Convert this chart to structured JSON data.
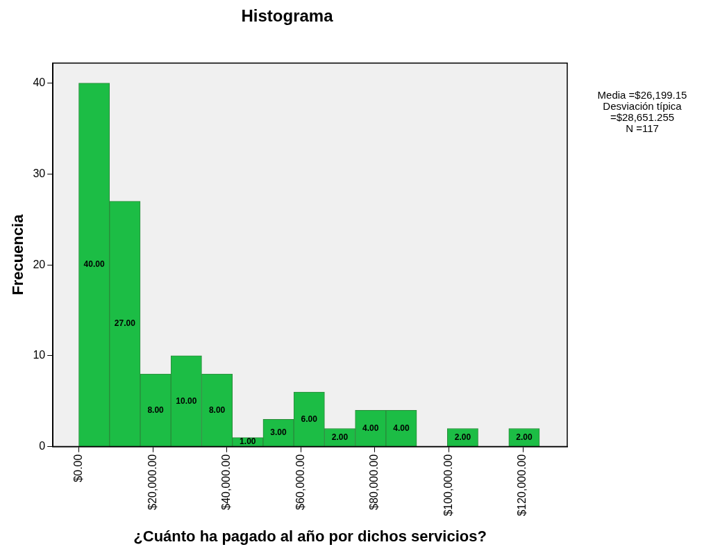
{
  "chart_data": {
    "type": "histogram",
    "title": "Histograma",
    "xlabel": "¿Cuánto ha pagado al año por dichos servicios?",
    "ylabel": "Frecuencia",
    "bins": [
      0,
      8300,
      16600,
      24900,
      33200,
      41500,
      49800,
      58100,
      66400,
      74700,
      83000,
      91300,
      99600,
      107900,
      116200,
      124500
    ],
    "values": [
      40,
      27,
      8,
      10,
      8,
      1,
      3,
      6,
      2,
      4,
      4,
      0,
      2,
      0,
      2
    ],
    "value_labels": [
      "40.00",
      "27.00",
      "8.00",
      "10.00",
      "8.00",
      "1.00",
      "3.00",
      "6.00",
      "2.00",
      "4.00",
      "4.00",
      null,
      "2.00",
      null,
      "2.00"
    ],
    "color": "#1cbd45",
    "xlim": [
      -7000,
      132000
    ],
    "xticks": [
      {
        "value": 0,
        "label": "$0.00"
      },
      {
        "value": 20000,
        "label": "$20,000.00"
      },
      {
        "value": 40000,
        "label": "$40,000.00"
      },
      {
        "value": 60000,
        "label": "$60,000.00"
      },
      {
        "value": 80000,
        "label": "$80,000.00"
      },
      {
        "value": 100000,
        "label": "$100,000.00"
      },
      {
        "value": 120000,
        "label": "$120,000.00"
      }
    ],
    "ylim": [
      0,
      42.2
    ],
    "yticks": [
      0,
      10,
      20,
      30,
      40
    ],
    "grid": false,
    "legend": false,
    "annotations": [
      "Media =$26,199.15",
      "Desviación típica",
      "=$28,651.255",
      "N =117"
    ]
  }
}
